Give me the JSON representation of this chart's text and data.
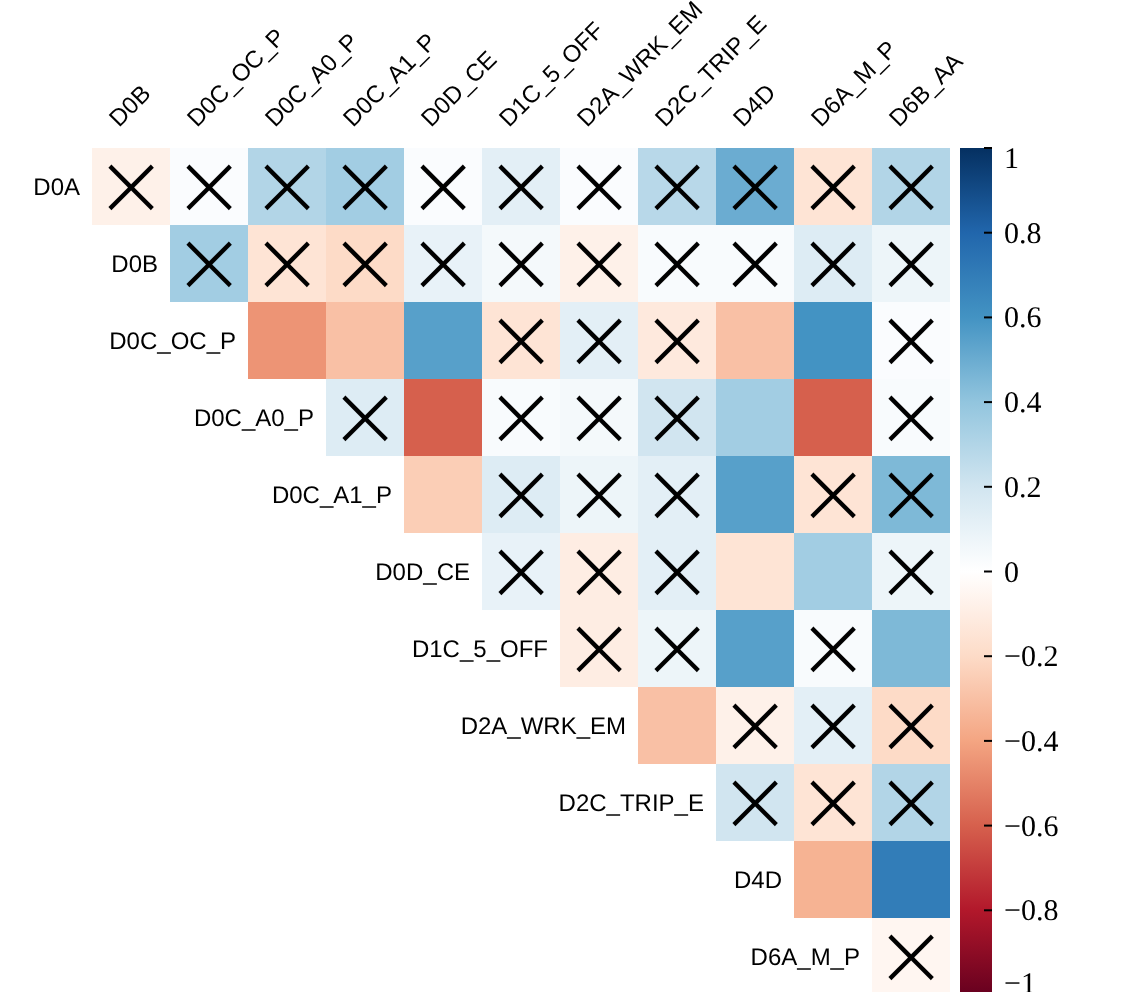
{
  "chart_data": {
    "type": "heatmap",
    "categories": [
      "D0B",
      "D0C_OC_P",
      "D0C_A0_P",
      "D0C_A1_P",
      "D0D_CE",
      "D1C_5_OFF",
      "D2A_WRK_EM",
      "D2C_TRIP_E",
      "D4D",
      "D6A_M_P",
      "D6B_AA"
    ],
    "y_categories": [
      "D0A",
      "D0B",
      "D0C_OC_P",
      "D0C_A0_P",
      "D0C_A1_P",
      "D0D_CE",
      "D1C_5_OFF",
      "D2A_WRK_EM",
      "D2C_TRIP_E",
      "D4D",
      "D6A_M_P"
    ],
    "cells": [
      [
        -0.08,
        0.02,
        0.3,
        0.35,
        0.02,
        0.12,
        0.02,
        0.28,
        0.5,
        -0.15,
        0.3
      ],
      [
        null,
        0.35,
        -0.15,
        -0.2,
        0.1,
        0.05,
        -0.08,
        0.03,
        0.03,
        0.15,
        0.08
      ],
      [
        null,
        null,
        -0.45,
        -0.3,
        0.55,
        -0.15,
        0.12,
        -0.12,
        -0.3,
        0.6,
        0.02
      ],
      [
        null,
        null,
        null,
        0.15,
        -0.6,
        0.03,
        0.05,
        0.2,
        0.35,
        -0.6,
        0.03
      ],
      [
        null,
        null,
        null,
        null,
        -0.25,
        0.15,
        0.08,
        0.12,
        0.55,
        -0.15,
        0.45
      ],
      [
        null,
        null,
        null,
        null,
        null,
        0.1,
        -0.1,
        0.12,
        -0.15,
        0.35,
        0.08
      ],
      [
        null,
        null,
        null,
        null,
        null,
        null,
        -0.1,
        0.08,
        0.55,
        0.03,
        0.45
      ],
      [
        null,
        null,
        null,
        null,
        null,
        null,
        null,
        -0.3,
        -0.08,
        0.12,
        -0.2
      ],
      [
        null,
        null,
        null,
        null,
        null,
        null,
        null,
        null,
        0.2,
        -0.15,
        0.3
      ],
      [
        null,
        null,
        null,
        null,
        null,
        null,
        null,
        null,
        null,
        -0.35,
        0.7
      ],
      [
        null,
        null,
        null,
        null,
        null,
        null,
        null,
        null,
        null,
        null,
        -0.05
      ]
    ],
    "cell_labels": [
      [
        "×",
        "×",
        "×",
        "×",
        "×",
        "×",
        "×",
        "×",
        "×",
        "×",
        "×"
      ],
      [
        null,
        "×",
        "×",
        "×",
        "×",
        "×",
        "×",
        "×",
        "×",
        "×",
        "×"
      ],
      [
        null,
        null,
        null,
        null,
        null,
        "×",
        "×",
        "×",
        null,
        null,
        "×"
      ],
      [
        null,
        null,
        null,
        "×",
        null,
        "×",
        "×",
        "×",
        null,
        null,
        "×"
      ],
      [
        null,
        null,
        null,
        null,
        null,
        "×",
        "×",
        "×",
        null,
        "×",
        "×"
      ],
      [
        null,
        null,
        null,
        null,
        null,
        "×",
        "×",
        "×",
        null,
        null,
        "×"
      ],
      [
        null,
        null,
        null,
        null,
        null,
        null,
        "×",
        "×",
        null,
        "×",
        null
      ],
      [
        null,
        null,
        null,
        null,
        null,
        null,
        null,
        null,
        "×",
        "×",
        "×"
      ],
      [
        null,
        null,
        null,
        null,
        null,
        null,
        null,
        null,
        "×",
        "×",
        "×"
      ],
      [
        null,
        null,
        null,
        null,
        null,
        null,
        null,
        null,
        null,
        null,
        null
      ],
      [
        null,
        null,
        null,
        null,
        null,
        null,
        null,
        null,
        null,
        null,
        "×"
      ]
    ],
    "clim": [
      -1,
      1
    ],
    "cticks": [
      {
        "value": -1,
        "label": "−1"
      },
      {
        "value": -0.8,
        "label": "−0.8"
      },
      {
        "value": -0.6,
        "label": "−0.6"
      },
      {
        "value": -0.4,
        "label": "−0.4"
      },
      {
        "value": -0.2,
        "label": "−0.2"
      },
      0,
      0.2,
      0.4,
      0.6,
      0.8,
      1
    ]
  }
}
